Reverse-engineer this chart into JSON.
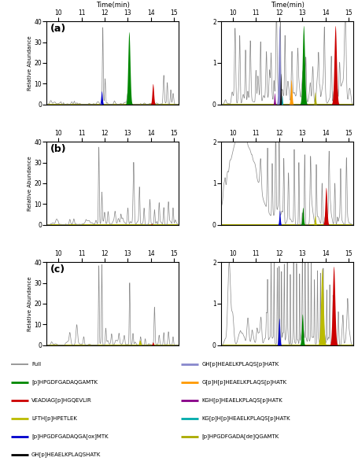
{
  "xlim": [
    9.5,
    15.2
  ],
  "left_ylim": [
    0,
    40
  ],
  "right_ylim": [
    0,
    2
  ],
  "left_yticks": [
    0,
    10,
    20,
    30,
    40
  ],
  "right_yticks": [
    0,
    1,
    2
  ],
  "xticks": [
    10,
    11,
    12,
    13,
    14,
    15
  ],
  "panels": [
    "(a)",
    "(b)",
    "(c)"
  ],
  "colors": {
    "full": "#888888",
    "green": "#008800",
    "red": "#cc0000",
    "yellow": "#bbbb00",
    "blue": "#0000cc",
    "black": "#000000",
    "lavender": "#8888cc",
    "orange": "#ff9900",
    "purple": "#880088",
    "cyan": "#00aaaa",
    "yellow2": "#aaaa00"
  },
  "legend_items_col1": [
    {
      "label": "Full",
      "color": "#888888",
      "lw": 1.2
    },
    {
      "label": "[p]HPGDFGADAQGAMTK",
      "color": "#008800",
      "lw": 2
    },
    {
      "label": "VEADIAG[p]HGQEVLIR",
      "color": "#cc0000",
      "lw": 2
    },
    {
      "label": "LFTH[p]HPETLEK",
      "color": "#bbbb00",
      "lw": 2
    },
    {
      "label": "[p]HPGDFGADAQGA[ox]MTK",
      "color": "#0000cc",
      "lw": 2
    },
    {
      "label": "GH[p]HEAELKPLAQSHATK",
      "color": "#000000",
      "lw": 2
    }
  ],
  "legend_items_col2": [
    {
      "label": "GH[p]HEAELKPLAQS[p]HATK",
      "color": "#8888cc",
      "lw": 2
    },
    {
      "label": "G[p]H[p]HEAELKPLAQS[p]HATK",
      "color": "#ff9900",
      "lw": 2
    },
    {
      "label": "KGH[p]HEAELKPLAQS[p]HATK",
      "color": "#880088",
      "lw": 2
    },
    {
      "label": "KG[p]H[p]HEAELKPLAQS[p]HATK",
      "color": "#00aaaa",
      "lw": 2
    },
    {
      "label": "[p]HPGDFGADA[de]QGAMTK",
      "color": "#aaaa00",
      "lw": 2
    }
  ]
}
